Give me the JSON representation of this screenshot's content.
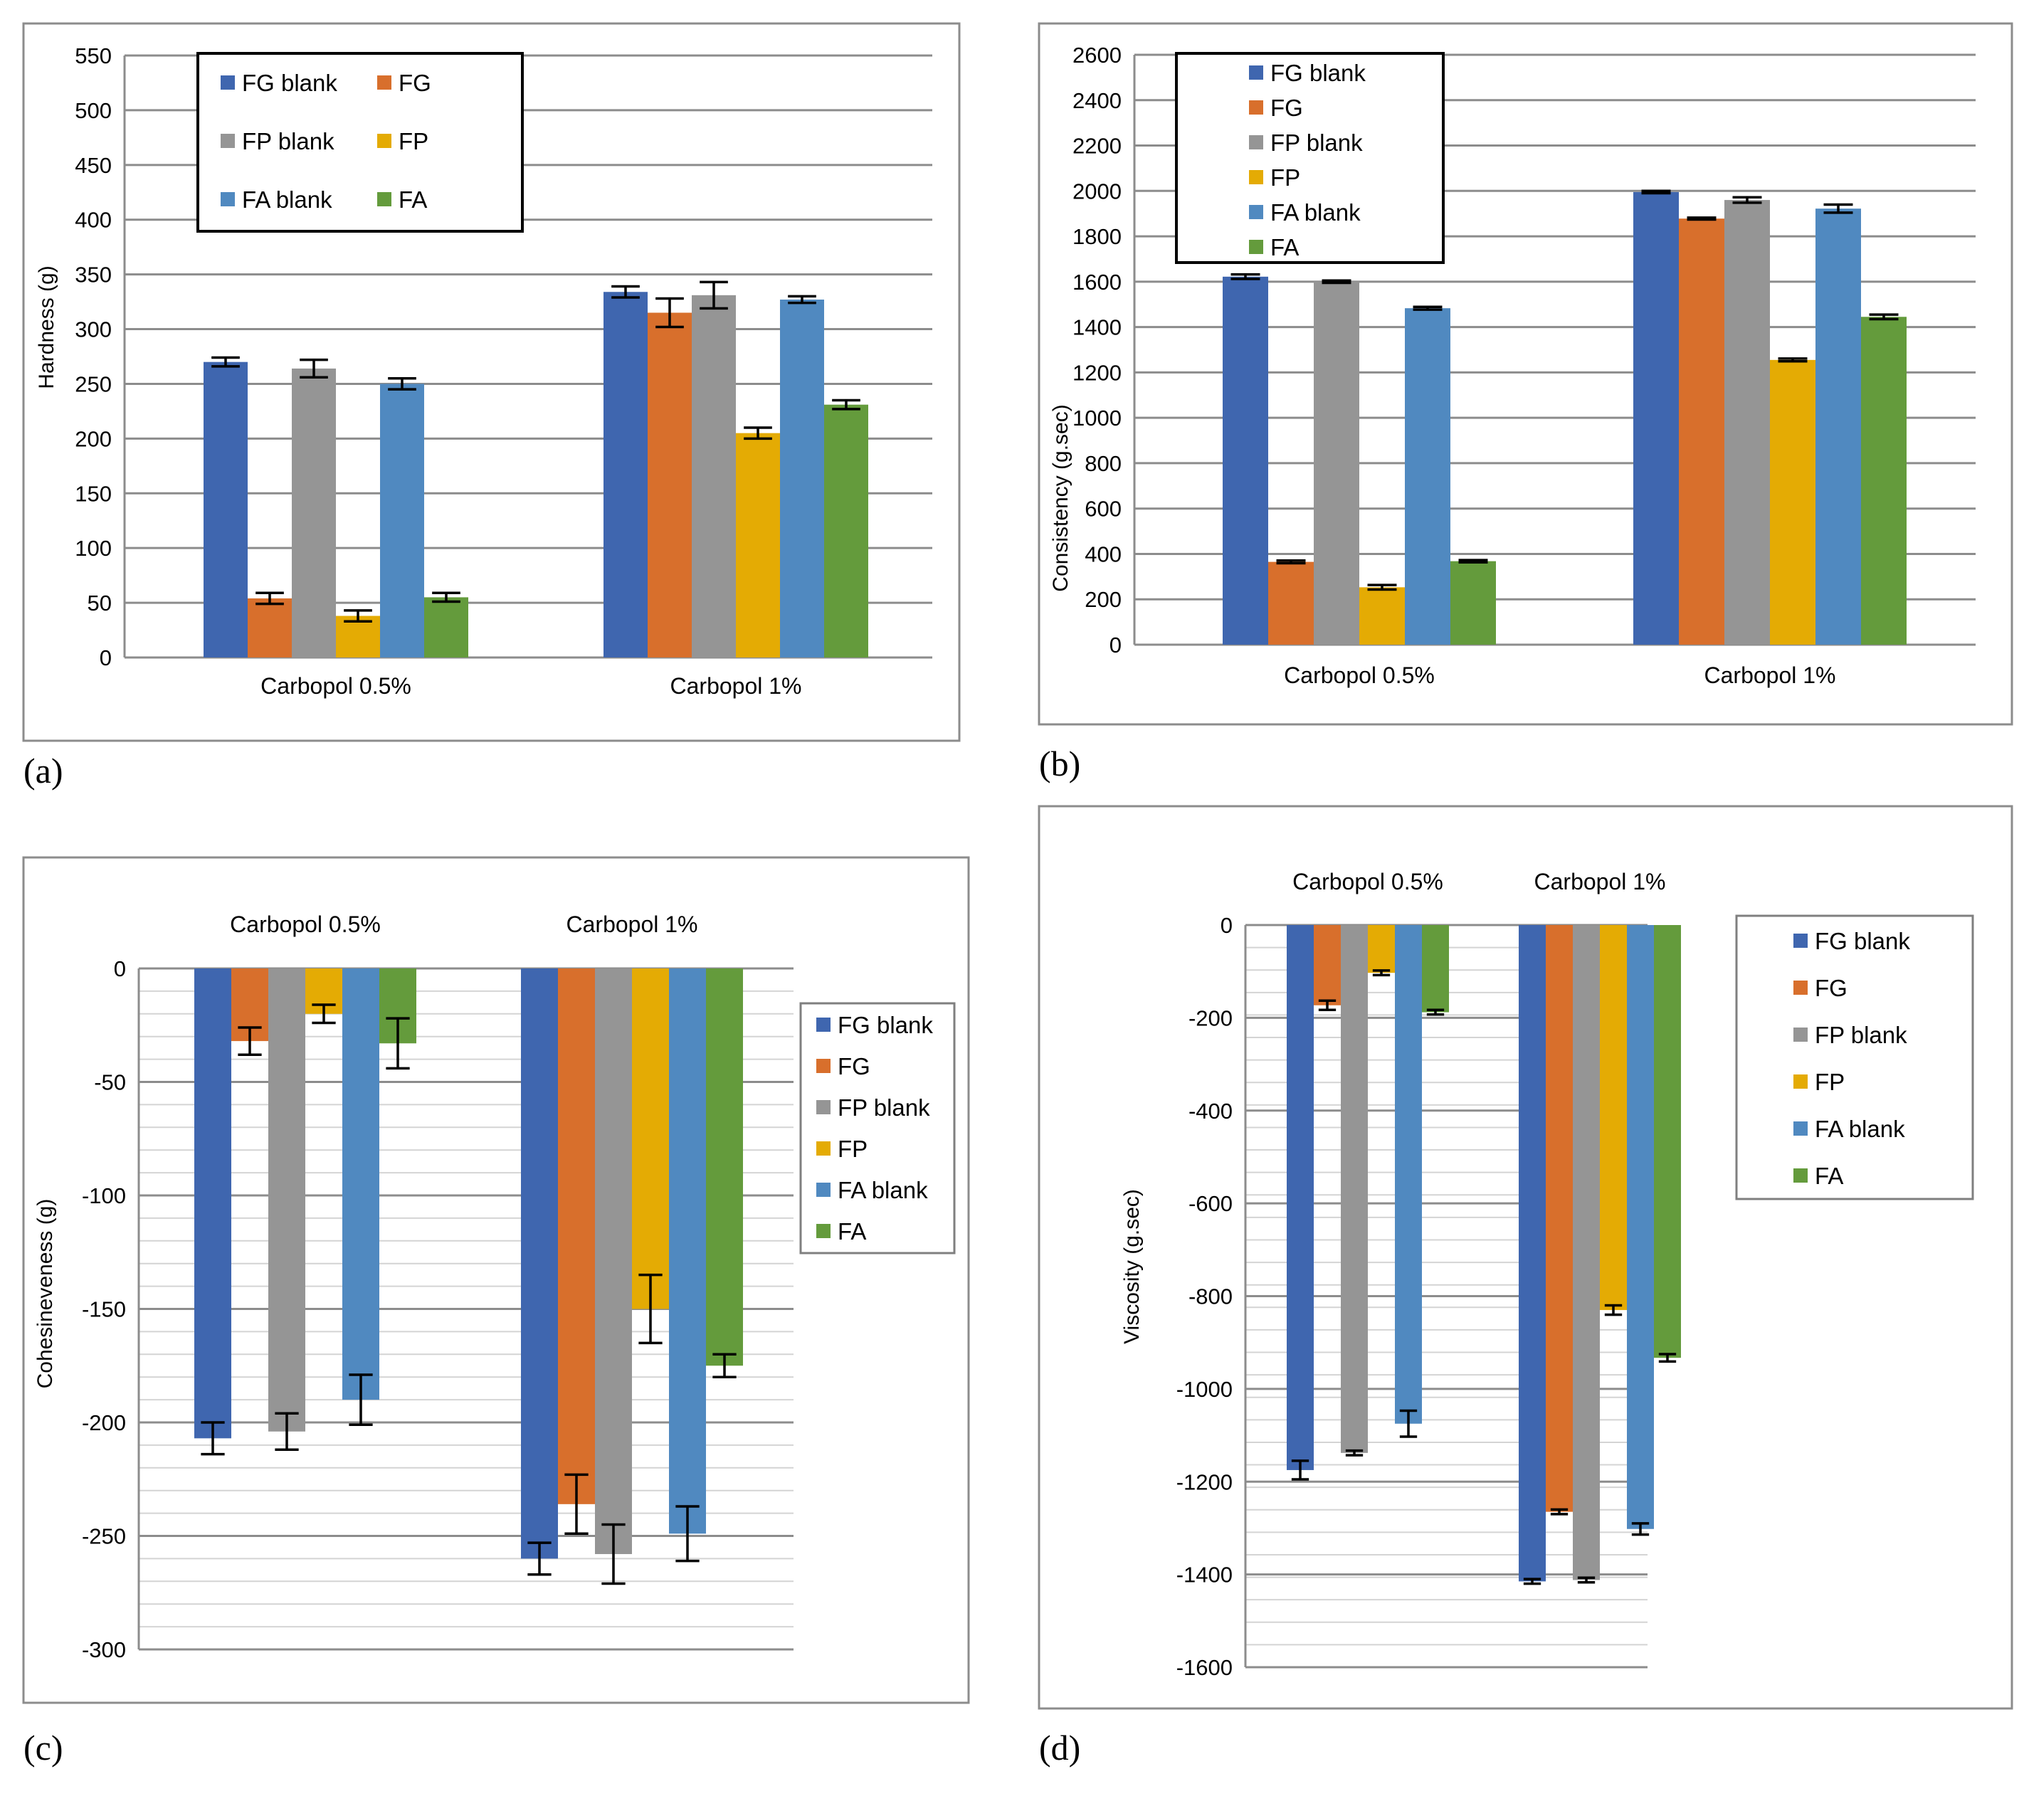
{
  "colors": {
    "FG blank": "#3F66AF",
    "FG": "#D86F2C",
    "FP blank": "#959595",
    "FP": "#E4AB04",
    "FA blank": "#5089C0",
    "FA": "#649B3C"
  },
  "chart_data": [
    {
      "type": "bar",
      "panel_label": "(a)",
      "ylabel": "Hardness (g)",
      "ylim": [
        0,
        550
      ],
      "yticks": [
        0,
        50,
        100,
        150,
        200,
        250,
        300,
        350,
        400,
        450,
        500,
        550
      ],
      "categories": [
        "Carbopol 0.5%",
        "Carbopol 1%"
      ],
      "series": [
        {
          "name": "FG blank",
          "values": [
            270,
            334
          ],
          "errors": [
            4,
            5
          ]
        },
        {
          "name": "FG",
          "values": [
            54,
            315
          ],
          "errors": [
            5,
            13
          ]
        },
        {
          "name": "FP blank",
          "values": [
            264,
            331
          ],
          "errors": [
            8,
            12
          ]
        },
        {
          "name": "FP",
          "values": [
            38,
            205
          ],
          "errors": [
            5,
            5
          ]
        },
        {
          "name": "FA blank",
          "values": [
            250,
            327
          ],
          "errors": [
            5,
            3
          ]
        },
        {
          "name": "FA",
          "values": [
            55,
            231
          ],
          "errors": [
            4,
            4
          ]
        }
      ]
    },
    {
      "type": "bar",
      "panel_label": "(b)",
      "ylabel": "Consistency (g.sec)",
      "ylim": [
        0,
        2600
      ],
      "yticks": [
        0,
        200,
        400,
        600,
        800,
        1000,
        1200,
        1400,
        1600,
        1800,
        2000,
        2200,
        2400,
        2600
      ],
      "categories": [
        "Carbopol 0.5%",
        "Carbopol 1%"
      ],
      "series": [
        {
          "name": "FG blank",
          "values": [
            1622,
            1995
          ],
          "errors": [
            10,
            5
          ]
        },
        {
          "name": "FG",
          "values": [
            365,
            1878
          ],
          "errors": [
            6,
            4
          ]
        },
        {
          "name": "FP blank",
          "values": [
            1600,
            1960
          ],
          "errors": [
            5,
            12
          ]
        },
        {
          "name": "FP",
          "values": [
            253,
            1255
          ],
          "errors": [
            10,
            6
          ]
        },
        {
          "name": "FA blank",
          "values": [
            1483,
            1922
          ],
          "errors": [
            6,
            18
          ]
        },
        {
          "name": "FA",
          "values": [
            368,
            1445
          ],
          "errors": [
            5,
            10
          ]
        }
      ]
    },
    {
      "type": "bar",
      "panel_label": "(c)",
      "ylabel": "Cohesineveness (g)",
      "ylim": [
        -300,
        0
      ],
      "yticks": [
        0,
        -50,
        -100,
        -150,
        -200,
        -250,
        -300
      ],
      "categories": [
        "Carbopol 0.5%",
        "Carbopol 1%"
      ],
      "series": [
        {
          "name": "FG blank",
          "values": [
            -207,
            -260
          ],
          "errors": [
            7,
            7
          ]
        },
        {
          "name": "FG",
          "values": [
            -32,
            -236
          ],
          "errors": [
            6,
            13
          ]
        },
        {
          "name": "FP blank",
          "values": [
            -204,
            -258
          ],
          "errors": [
            8,
            13
          ]
        },
        {
          "name": "FP",
          "values": [
            -20,
            -150
          ],
          "errors": [
            4,
            15
          ]
        },
        {
          "name": "FA blank",
          "values": [
            -190,
            -249
          ],
          "errors": [
            11,
            12
          ]
        },
        {
          "name": "FA",
          "values": [
            -33,
            -175
          ],
          "errors": [
            11,
            5
          ]
        }
      ]
    },
    {
      "type": "bar",
      "panel_label": "(d)",
      "ylabel": "Viscosity (g.sec)",
      "ylim": [
        -1600,
        0
      ],
      "yticks": [
        0,
        -200,
        -400,
        -600,
        -800,
        -1000,
        -1200,
        -1400,
        -1600
      ],
      "categories": [
        "Carbopol 0.5%",
        "Carbopol 1%"
      ],
      "series": [
        {
          "name": "FG blank",
          "values": [
            -1175,
            -1415
          ],
          "errors": [
            20,
            5
          ]
        },
        {
          "name": "FG",
          "values": [
            -173,
            -1265
          ],
          "errors": [
            10,
            5
          ]
        },
        {
          "name": "FP blank",
          "values": [
            -1138,
            -1412
          ],
          "errors": [
            5,
            5
          ]
        },
        {
          "name": "FP",
          "values": [
            -103,
            -830
          ],
          "errors": [
            5,
            10
          ]
        },
        {
          "name": "FA blank",
          "values": [
            -1075,
            -1302
          ],
          "errors": [
            28,
            12
          ]
        },
        {
          "name": "FA",
          "values": [
            -188,
            -933
          ],
          "errors": [
            5,
            8
          ]
        }
      ]
    }
  ]
}
